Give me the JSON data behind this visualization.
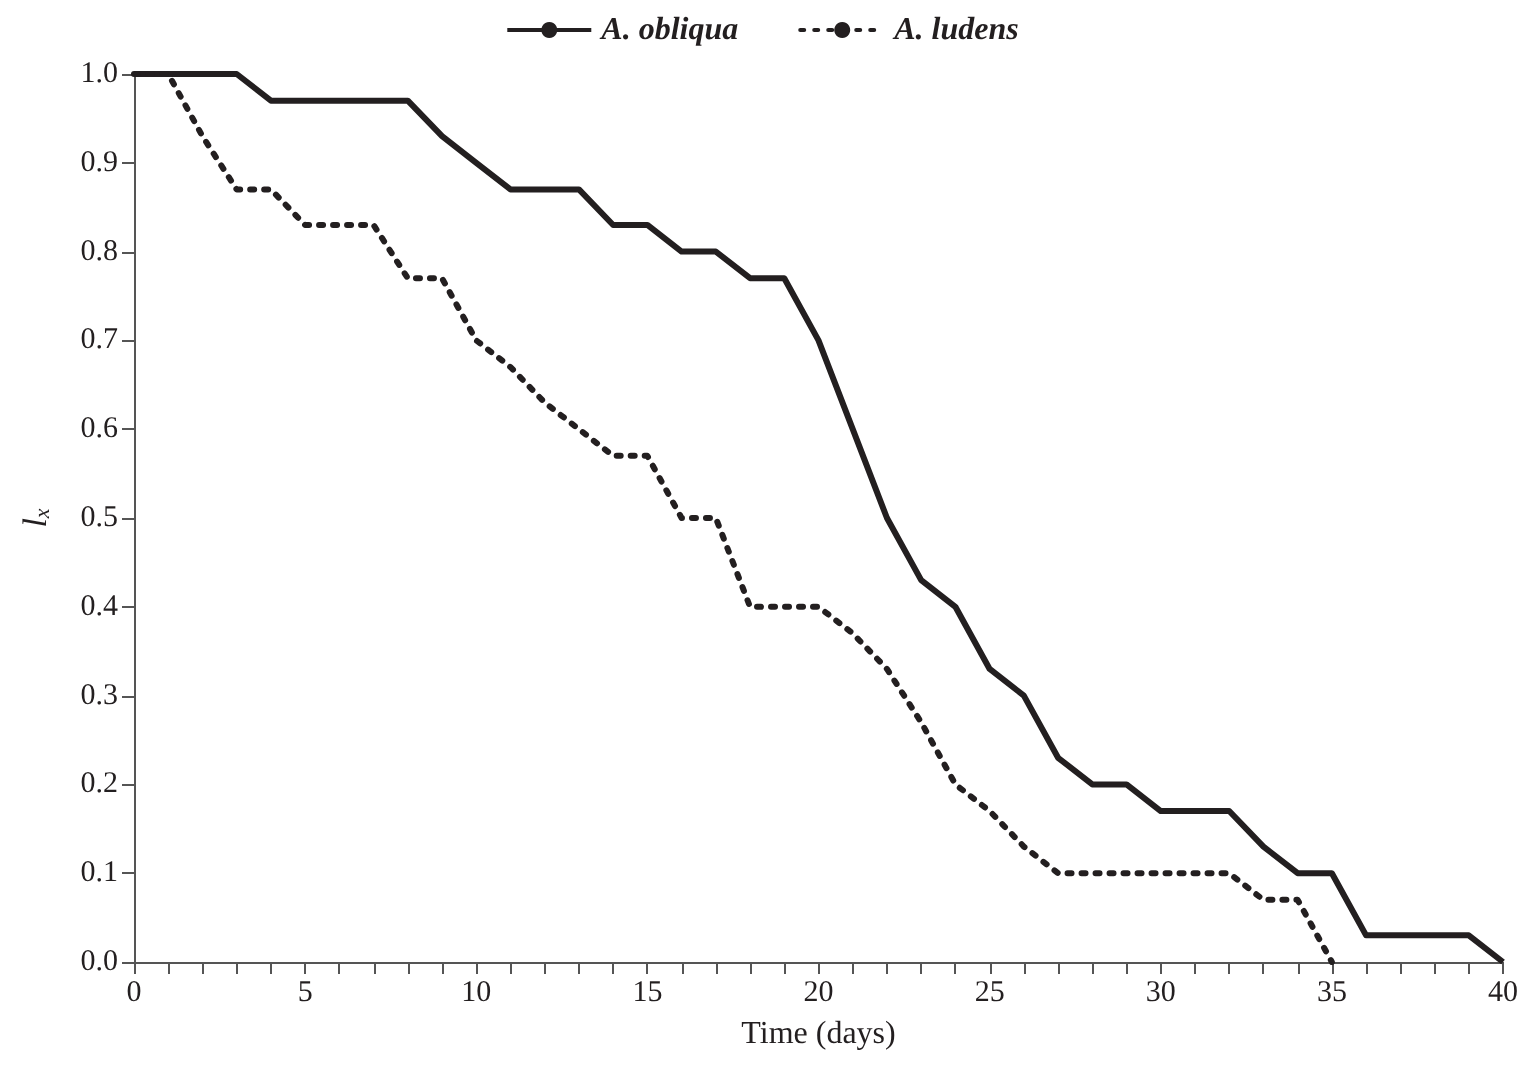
{
  "chart_data": {
    "type": "line",
    "xlabel": "Time (days)",
    "ylabel": "l$_{x}$",
    "legend": "top",
    "grid": false,
    "marker": "none",
    "xlim": [
      0,
      40
    ],
    "ylim": [
      0,
      1
    ],
    "xticks": [
      0,
      {
        "value": 1,
        "label": null
      },
      {
        "value": 2,
        "label": null
      },
      {
        "value": 3,
        "label": null
      },
      {
        "value": 4,
        "label": null
      },
      5,
      {
        "value": 6,
        "label": null
      },
      {
        "value": 7,
        "label": null
      },
      {
        "value": 8,
        "label": null
      },
      {
        "value": 9,
        "label": null
      },
      10,
      {
        "value": 11,
        "label": null
      },
      {
        "value": 12,
        "label": null
      },
      {
        "value": 13,
        "label": null
      },
      {
        "value": 14,
        "label": null
      },
      15,
      {
        "value": 16,
        "label": null
      },
      {
        "value": 17,
        "label": null
      },
      {
        "value": 18,
        "label": null
      },
      {
        "value": 19,
        "label": null
      },
      20,
      {
        "value": 21,
        "label": null
      },
      {
        "value": 22,
        "label": null
      },
      {
        "value": 23,
        "label": null
      },
      {
        "value": 24,
        "label": null
      },
      25,
      {
        "value": 26,
        "label": null
      },
      {
        "value": 27,
        "label": null
      },
      {
        "value": 28,
        "label": null
      },
      {
        "value": 29,
        "label": null
      },
      30,
      {
        "value": 31,
        "label": null
      },
      {
        "value": 32,
        "label": null
      },
      {
        "value": 33,
        "label": null
      },
      {
        "value": 34,
        "label": null
      },
      35,
      {
        "value": 36,
        "label": null
      },
      {
        "value": 37,
        "label": null
      },
      {
        "value": 38,
        "label": null
      },
      {
        "value": 39,
        "label": null
      },
      40
    ],
    "yticks": [
      {
        "value": 0,
        "label": "0.0"
      },
      {
        "value": 0.1,
        "label": "0.1"
      },
      {
        "value": 0.2,
        "label": "0.2"
      },
      {
        "value": 0.3,
        "label": "0.3"
      },
      {
        "value": 0.4,
        "label": "0.4"
      },
      {
        "value": 0.5,
        "label": "0.5"
      },
      {
        "value": 0.6,
        "label": "0.6"
      },
      {
        "value": 0.7,
        "label": "0.7"
      },
      {
        "value": 0.8,
        "label": "0.8"
      },
      {
        "value": 0.9,
        "label": "0.9"
      },
      {
        "value": 1,
        "label": "1.0"
      }
    ],
    "series": [
      {
        "name": "A. obliqua",
        "color": "#231f20",
        "line_style": "solid",
        "x": [
          0,
          1,
          2,
          3,
          4,
          5,
          6,
          7,
          8,
          9,
          10,
          11,
          12,
          13,
          14,
          15,
          16,
          17,
          18,
          19,
          20,
          21,
          22,
          23,
          24,
          25,
          26,
          27,
          28,
          29,
          30,
          31,
          32,
          33,
          34,
          35,
          36,
          37,
          38,
          39,
          40
        ],
        "values": [
          1,
          1,
          1,
          1,
          0.97,
          0.97,
          0.97,
          0.97,
          0.97,
          0.93,
          0.9,
          0.87,
          0.87,
          0.87,
          0.83,
          0.83,
          0.8,
          0.8,
          0.77,
          0.77,
          0.7,
          0.6,
          0.5,
          0.43,
          0.4,
          0.33,
          0.3,
          0.23,
          0.2,
          0.2,
          0.17,
          0.17,
          0.17,
          0.13,
          0.1,
          0.1,
          0.03,
          0.03,
          0.03,
          0.03,
          0
        ]
      },
      {
        "name": "A. ludens",
        "color": "#231f20",
        "line_style": "dotted",
        "x": [
          0,
          1,
          2,
          3,
          4,
          5,
          6,
          7,
          8,
          9,
          10,
          11,
          12,
          13,
          14,
          15,
          16,
          17,
          18,
          19,
          20,
          21,
          22,
          23,
          24,
          25,
          26,
          27,
          28,
          29,
          30,
          31,
          32,
          33,
          34,
          35
        ],
        "values": [
          1,
          1,
          0.93,
          0.87,
          0.87,
          0.83,
          0.83,
          0.83,
          0.77,
          0.77,
          0.7,
          0.67,
          0.63,
          0.6,
          0.57,
          0.57,
          0.5,
          0.5,
          0.4,
          0.4,
          0.4,
          0.37,
          0.33,
          0.27,
          0.2,
          0.17,
          0.13,
          0.1,
          0.1,
          0.1,
          0.1,
          0.1,
          0.1,
          0.07,
          0.07,
          0
        ]
      }
    ]
  }
}
